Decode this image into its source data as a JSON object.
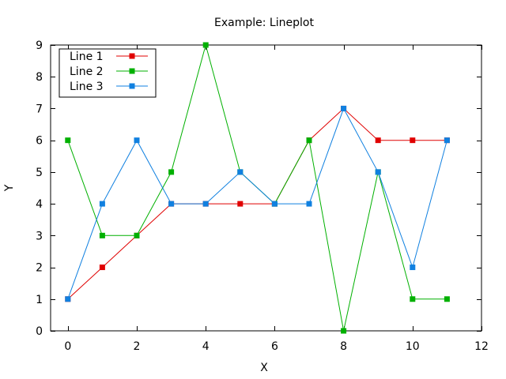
{
  "chart_data": {
    "type": "line",
    "title": "Example: Lineplot",
    "xlabel": "X",
    "ylabel": "Y",
    "xlim": [
      -0.5,
      12
    ],
    "ylim": [
      0,
      9
    ],
    "xticks": [
      0,
      2,
      4,
      6,
      8,
      10,
      12
    ],
    "yticks": [
      0,
      1,
      2,
      3,
      4,
      5,
      6,
      7,
      8,
      9
    ],
    "grid": false,
    "legend_position": "top-left",
    "x": [
      0,
      1,
      2,
      3,
      4,
      5,
      6,
      7,
      8,
      9,
      10,
      11
    ],
    "series": [
      {
        "name": "Line 1",
        "color": "#e00000",
        "values": [
          1,
          2,
          3,
          4,
          4,
          4,
          4,
          6,
          7,
          6,
          6,
          6
        ]
      },
      {
        "name": "Line 2",
        "color": "#00b000",
        "values": [
          6,
          3,
          3,
          5,
          9,
          5,
          4,
          6,
          0,
          5,
          1,
          1
        ]
      },
      {
        "name": "Line 3",
        "color": "#1080e0",
        "values": [
          1,
          4,
          6,
          4,
          4,
          5,
          4,
          4,
          7,
          5,
          2,
          6
        ]
      }
    ]
  }
}
